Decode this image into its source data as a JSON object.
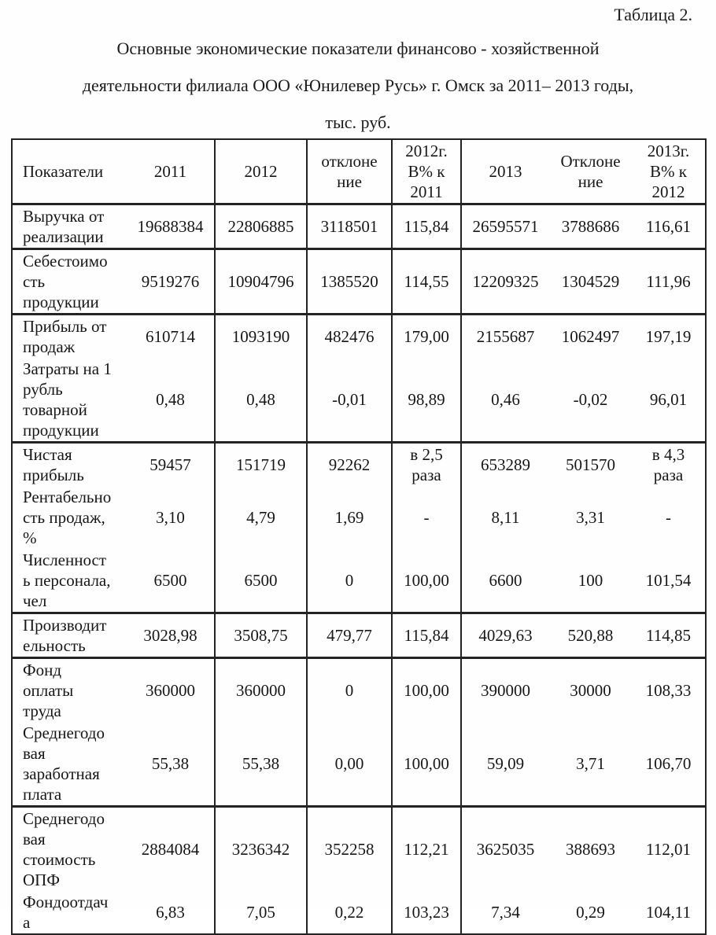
{
  "doc": {
    "table_caption": "Таблица 2.",
    "title": "Основные экономические показатели финансово - хозяйственной\nдеятельности филиала ООО «Юнилевер Русь» г. Омск за 2011– 2013 годы,\nтыс. руб."
  },
  "table": {
    "headers": {
      "indicators": "Показатели",
      "y2011": "2011",
      "y2012": "2012",
      "deviation1": "отклоне\nние",
      "pct2012": "2012г.\nВ% к\n2011",
      "y2013": "2013",
      "deviation2": "Отклоне\nние",
      "pct2013": "2013г.\nВ% к\n2012"
    },
    "rows": [
      {
        "label": "Выручка от\nреализации",
        "block_start": true,
        "values": [
          "19688384",
          "22806885",
          "3118501",
          "115,84",
          "26595571",
          "3788686",
          "116,61"
        ]
      },
      {
        "label": "Себестоимо\nсть\nпродукции",
        "block_start": true,
        "values": [
          "9519276",
          "10904796",
          "1385520",
          "114,55",
          "12209325",
          "1304529",
          "111,96"
        ]
      },
      {
        "label": "Прибыль от\nпродаж",
        "block_start": true,
        "values": [
          "610714",
          "1093190",
          "482476",
          "179,00",
          "2155687",
          "1062497",
          "197,19"
        ]
      },
      {
        "label": "Затраты на 1\nрубль\nтоварной\nпродукции",
        "block_start": false,
        "values": [
          "0,48",
          "0,48",
          "-0,01",
          "98,89",
          "0,46",
          "-0,02",
          "96,01"
        ]
      },
      {
        "label": "Чистая\nприбыль",
        "block_start": true,
        "values": [
          "59457",
          "151719",
          "92262",
          "в 2,5\nраза",
          "653289",
          "501570",
          "в 4,3\nраза"
        ]
      },
      {
        "label": "Рентабельно\nсть продаж,\n%",
        "block_start": false,
        "values": [
          "3,10",
          "4,79",
          "1,69",
          "-",
          "8,11",
          "3,31",
          "-"
        ]
      },
      {
        "label": "Численност\nь персонала,\nчел",
        "block_start": false,
        "values": [
          "6500",
          "6500",
          "0",
          "100,00",
          "6600",
          "100",
          "101,54"
        ]
      },
      {
        "label": "Производит\nельность",
        "block_start": true,
        "values": [
          "3028,98",
          "3508,75",
          "479,77",
          "115,84",
          "4029,63",
          "520,88",
          "114,85"
        ]
      },
      {
        "label": "Фонд\nоплаты\nтруда",
        "block_start": true,
        "values": [
          "360000",
          "360000",
          "0",
          "100,00",
          "390000",
          "30000",
          "108,33"
        ]
      },
      {
        "label": "Среднегодо\nвая\nзаработная\nплата",
        "block_start": false,
        "values": [
          "55,38",
          "55,38",
          "0,00",
          "100,00",
          "59,09",
          "3,71",
          "106,70"
        ]
      },
      {
        "label": "Среднегодо\nвая\nстоимость\nОПФ",
        "block_start": true,
        "values": [
          "2884084",
          "3236342",
          "352258",
          "112,21",
          "3625035",
          "388693",
          "112,01"
        ]
      },
      {
        "label": "Фондоотдач\nа",
        "block_start": false,
        "values": [
          "6,83",
          "7,05",
          "0,22",
          "103,23",
          "7,34",
          "0,29",
          "104,11"
        ]
      }
    ]
  }
}
